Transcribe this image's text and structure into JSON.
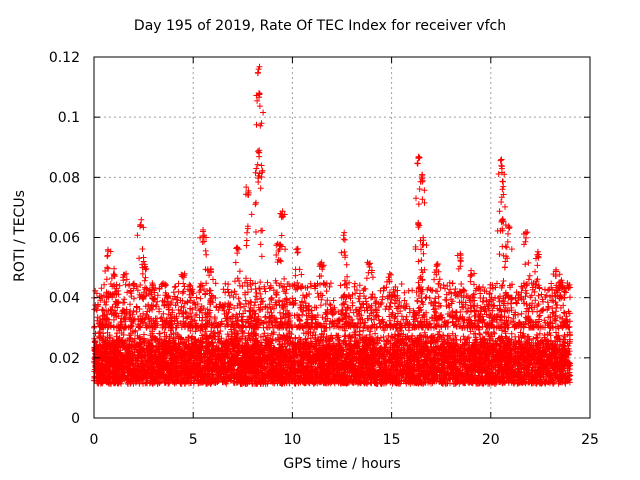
{
  "chart_data": {
    "type": "scatter",
    "title": "Day 195 of 2019, Rate Of TEC Index for receiver vfch",
    "xlabel": "GPS time / hours",
    "ylabel": "ROTI / TECUs",
    "xlim": [
      0,
      25
    ],
    "ylim": [
      0,
      0.12
    ],
    "x_ticks": [
      0,
      5,
      10,
      15,
      20,
      25
    ],
    "y_ticks": [
      0,
      0.02,
      0.04,
      0.06,
      0.08,
      0.1,
      0.12
    ],
    "x_tick_labels": [
      "0",
      "5",
      "10",
      "15",
      "20",
      "25"
    ],
    "y_tick_labels": [
      "0",
      "0.02",
      "0.04",
      "0.06",
      "0.08",
      "0.1",
      "0.12"
    ],
    "grid": true,
    "marker": "+",
    "color": "#ff0000",
    "data_range_hours": [
      0,
      24
    ],
    "baseline_band": [
      0.008,
      0.03
    ],
    "peaks": [
      {
        "x": 0.7,
        "y": 0.056
      },
      {
        "x": 1.0,
        "y": 0.05
      },
      {
        "x": 1.5,
        "y": 0.048
      },
      {
        "x": 2.35,
        "y": 0.066
      },
      {
        "x": 2.6,
        "y": 0.052
      },
      {
        "x": 3.7,
        "y": 0.039
      },
      {
        "x": 4.5,
        "y": 0.048
      },
      {
        "x": 5.5,
        "y": 0.063
      },
      {
        "x": 5.9,
        "y": 0.05
      },
      {
        "x": 7.25,
        "y": 0.057
      },
      {
        "x": 7.8,
        "y": 0.077
      },
      {
        "x": 8.3,
        "y": 0.117
      },
      {
        "x": 8.35,
        "y": 0.109
      },
      {
        "x": 8.3,
        "y": 0.09
      },
      {
        "x": 9.5,
        "y": 0.069
      },
      {
        "x": 9.3,
        "y": 0.058
      },
      {
        "x": 10.3,
        "y": 0.057
      },
      {
        "x": 11.5,
        "y": 0.052
      },
      {
        "x": 12.6,
        "y": 0.062
      },
      {
        "x": 13.9,
        "y": 0.052
      },
      {
        "x": 14.9,
        "y": 0.048
      },
      {
        "x": 16.4,
        "y": 0.087
      },
      {
        "x": 16.5,
        "y": 0.081
      },
      {
        "x": 16.3,
        "y": 0.065
      },
      {
        "x": 16.6,
        "y": 0.06
      },
      {
        "x": 17.3,
        "y": 0.052
      },
      {
        "x": 18.5,
        "y": 0.055
      },
      {
        "x": 19.0,
        "y": 0.05
      },
      {
        "x": 20.5,
        "y": 0.086
      },
      {
        "x": 20.6,
        "y": 0.079
      },
      {
        "x": 20.6,
        "y": 0.067
      },
      {
        "x": 20.9,
        "y": 0.064
      },
      {
        "x": 21.8,
        "y": 0.062
      },
      {
        "x": 22.4,
        "y": 0.056
      },
      {
        "x": 23.3,
        "y": 0.05
      },
      {
        "x": 23.6,
        "y": 0.046
      }
    ]
  }
}
